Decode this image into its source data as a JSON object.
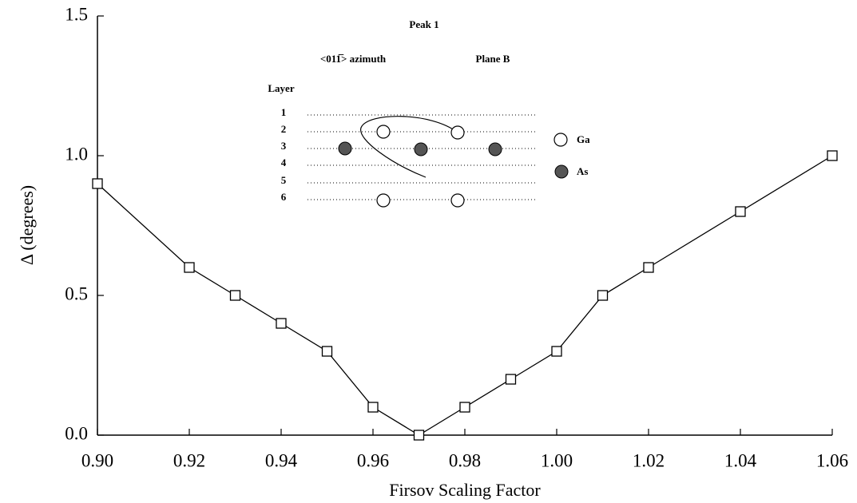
{
  "chart_data": {
    "type": "line",
    "x_label": "Firsov Scaling Factor",
    "y_label": "Δ  (degrees)",
    "x": [
      0.9,
      0.92,
      0.93,
      0.94,
      0.95,
      0.96,
      0.97,
      0.98,
      0.99,
      1.0,
      1.01,
      1.02,
      1.04,
      1.06
    ],
    "series": [
      {
        "color": "#000000",
        "values": [
          0.9,
          0.6,
          0.5,
          0.4,
          0.3,
          0.1,
          0.0,
          0.1,
          0.2,
          0.3,
          0.5,
          0.6,
          0.8,
          1.0
        ]
      }
    ],
    "xlim": [
      0.9,
      1.06
    ],
    "ylim": [
      0,
      1.5
    ],
    "xticks": [
      {
        "value": 0.9,
        "label": "0.90"
      },
      {
        "value": 0.92,
        "label": "0.92"
      },
      {
        "value": 0.94,
        "label": "0.94"
      },
      {
        "value": 0.96,
        "label": "0.96"
      },
      {
        "value": 0.98,
        "label": "0.98"
      },
      {
        "value": 1.0,
        "label": "1.00"
      },
      {
        "value": 1.02,
        "label": "1.02"
      },
      {
        "value": 1.04,
        "label": "1.04"
      },
      {
        "value": 1.06,
        "label": "1.06"
      }
    ],
    "yticks": [
      {
        "value": 0,
        "label": "0.0"
      },
      {
        "value": 0.5,
        "label": "0.5"
      },
      {
        "value": 1.0,
        "label": "1.0"
      },
      {
        "value": 1.5,
        "label": "1.5"
      }
    ],
    "grid": false,
    "inset": {
      "title": "Peak 1",
      "azimuth": "<011̅> azimuth",
      "plane": "Plane B",
      "layer_heading": "Layer",
      "layers": [
        "1",
        "2",
        "3",
        "4",
        "5",
        "6"
      ],
      "legend": [
        "Ga",
        "As"
      ]
    }
  }
}
